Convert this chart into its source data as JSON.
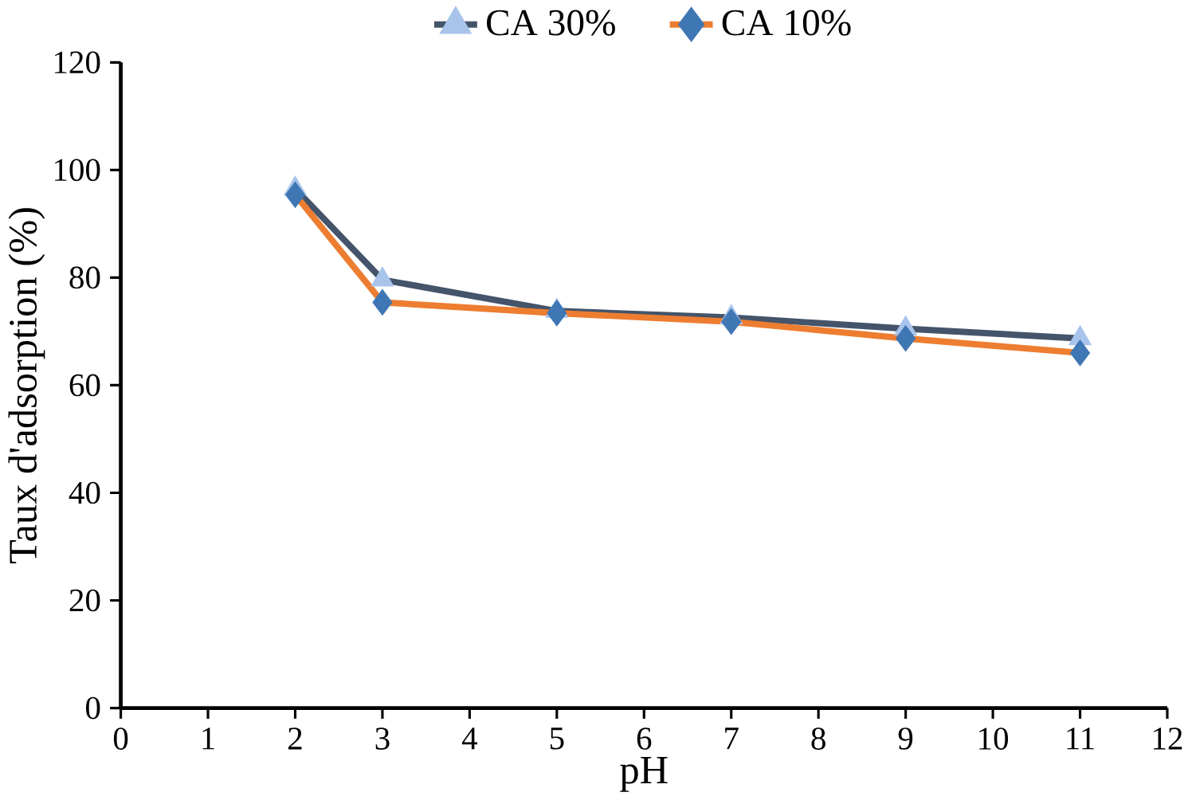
{
  "chart_data": {
    "type": "line",
    "xlabel": "pH",
    "ylabel": "Taux d'adsorption (%)",
    "x": [
      2,
      3,
      5,
      7,
      9,
      11
    ],
    "series": [
      {
        "name": "CA 30%",
        "color": "#44546a",
        "marker": "triangle",
        "colors": [
          "#a9c4eb",
          "#a9c4eb",
          "#a9c4eb",
          "#a9c4eb",
          "#a9c4eb",
          "#a9c4eb"
        ],
        "values": [
          96.5,
          79.6,
          73.8,
          72.6,
          70.5,
          68.7
        ]
      },
      {
        "name": "CA 10%",
        "color": "#ed7d31",
        "marker": "diamond",
        "colors": [
          "#3f76b4",
          "#3f76b4",
          "#3f76b4",
          "#3f76b4",
          "#3f76b4",
          "#3f76b4"
        ],
        "values": [
          95.4,
          75.4,
          73.4,
          71.8,
          68.7,
          66
        ]
      }
    ],
    "xlim": [
      0,
      12
    ],
    "xticks": [
      0,
      1,
      2,
      3,
      4,
      5,
      6,
      7,
      8,
      9,
      10,
      11,
      12
    ],
    "ylim": [
      0,
      120
    ],
    "yticks": [
      0,
      20,
      40,
      60,
      80,
      100,
      120
    ],
    "legend": "top",
    "grid": false,
    "line_style": "solid"
  }
}
